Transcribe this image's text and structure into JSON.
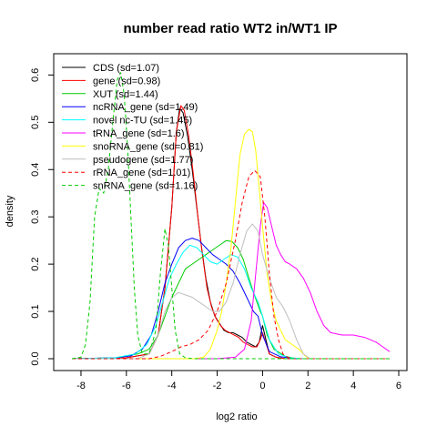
{
  "chart_data": {
    "type": "line",
    "title": "number read ratio WT2 in/WT1 IP",
    "xlabel": "log2 ratio",
    "ylabel": "density",
    "xlim": [
      -8.6,
      5.8
    ],
    "ylim": [
      0,
      0.62
    ],
    "x_ticks": [
      -8,
      -6,
      -4,
      -2,
      0,
      2,
      4,
      6
    ],
    "y_ticks": [
      0.0,
      0.1,
      0.2,
      0.3,
      0.4,
      0.5,
      0.6
    ],
    "legend_position": "top-left",
    "series": [
      {
        "name": "CDS (sd=1.07)",
        "color": "#000000",
        "dash": "solid",
        "points": [
          [
            -8.4,
            0
          ],
          [
            -6,
            0.002
          ],
          [
            -5,
            0.01
          ],
          [
            -4.6,
            0.05
          ],
          [
            -4.3,
            0.15
          ],
          [
            -4,
            0.32
          ],
          [
            -3.8,
            0.48
          ],
          [
            -3.65,
            0.53
          ],
          [
            -3.5,
            0.52
          ],
          [
            -3.3,
            0.47
          ],
          [
            -3.1,
            0.4
          ],
          [
            -2.9,
            0.32
          ],
          [
            -2.7,
            0.24
          ],
          [
            -2.5,
            0.17
          ],
          [
            -2.3,
            0.12
          ],
          [
            -2.1,
            0.09
          ],
          [
            -1.9,
            0.075
          ],
          [
            -1.7,
            0.06
          ],
          [
            -1.5,
            0.055
          ],
          [
            -1.3,
            0.055
          ],
          [
            -1.1,
            0.05
          ],
          [
            -0.9,
            0.045
          ],
          [
            -0.7,
            0.035
          ],
          [
            -0.5,
            0.03
          ],
          [
            -0.3,
            0.025
          ],
          [
            -0.15,
            0.035
          ],
          [
            0,
            0.07
          ],
          [
            0.1,
            0.05
          ],
          [
            0.3,
            0.01
          ],
          [
            0.6,
            0.003
          ],
          [
            1,
            0
          ],
          [
            5.6,
            0
          ]
        ]
      },
      {
        "name": "gene (sd=0.98)",
        "color": "#ff0000",
        "dash": "solid",
        "points": [
          [
            -8.4,
            0
          ],
          [
            -6,
            0.002
          ],
          [
            -5,
            0.01
          ],
          [
            -4.6,
            0.05
          ],
          [
            -4.3,
            0.15
          ],
          [
            -4,
            0.32
          ],
          [
            -3.8,
            0.48
          ],
          [
            -3.6,
            0.535
          ],
          [
            -3.45,
            0.525
          ],
          [
            -3.25,
            0.47
          ],
          [
            -3.05,
            0.39
          ],
          [
            -2.85,
            0.3
          ],
          [
            -2.65,
            0.22
          ],
          [
            -2.45,
            0.15
          ],
          [
            -2.25,
            0.11
          ],
          [
            -2.05,
            0.085
          ],
          [
            -1.85,
            0.07
          ],
          [
            -1.65,
            0.06
          ],
          [
            -1.45,
            0.055
          ],
          [
            -1.25,
            0.05
          ],
          [
            -1.05,
            0.045
          ],
          [
            -0.85,
            0.035
          ],
          [
            -0.65,
            0.03
          ],
          [
            -0.45,
            0.025
          ],
          [
            -0.25,
            0.025
          ],
          [
            -0.1,
            0.04
          ],
          [
            0,
            0.055
          ],
          [
            0.1,
            0.04
          ],
          [
            0.3,
            0.01
          ],
          [
            0.6,
            0.003
          ],
          [
            1,
            0
          ],
          [
            5.6,
            0
          ]
        ]
      },
      {
        "name": "XUT (sd=1.44)",
        "color": "#00cc00",
        "dash": "solid",
        "points": [
          [
            -8.4,
            0
          ],
          [
            -6.5,
            0.002
          ],
          [
            -5.5,
            0.01
          ],
          [
            -5,
            0.02
          ],
          [
            -4.6,
            0.05
          ],
          [
            -4.3,
            0.09
          ],
          [
            -4,
            0.13
          ],
          [
            -3.7,
            0.16
          ],
          [
            -3.4,
            0.19
          ],
          [
            -3.1,
            0.2
          ],
          [
            -2.8,
            0.21
          ],
          [
            -2.5,
            0.22
          ],
          [
            -2.2,
            0.23
          ],
          [
            -1.9,
            0.24
          ],
          [
            -1.6,
            0.25
          ],
          [
            -1.35,
            0.248
          ],
          [
            -1.1,
            0.235
          ],
          [
            -0.85,
            0.21
          ],
          [
            -0.6,
            0.17
          ],
          [
            -0.4,
            0.14
          ],
          [
            -0.25,
            0.12
          ],
          [
            -0.1,
            0.1
          ],
          [
            0,
            0.09
          ],
          [
            0.2,
            0.05
          ],
          [
            0.5,
            0.02
          ],
          [
            1,
            0.005
          ],
          [
            1.5,
            0
          ],
          [
            5.6,
            0
          ]
        ]
      },
      {
        "name": "ncRNA_gene (sd=1.49)",
        "color": "#0000ff",
        "dash": "solid",
        "points": [
          [
            -8.4,
            0
          ],
          [
            -6.5,
            0.002
          ],
          [
            -5.8,
            0.006
          ],
          [
            -5.3,
            0.02
          ],
          [
            -4.9,
            0.05
          ],
          [
            -4.6,
            0.1
          ],
          [
            -4.3,
            0.16
          ],
          [
            -4,
            0.2
          ],
          [
            -3.7,
            0.235
          ],
          [
            -3.4,
            0.25
          ],
          [
            -3.1,
            0.255
          ],
          [
            -2.8,
            0.25
          ],
          [
            -2.5,
            0.235
          ],
          [
            -2.2,
            0.22
          ],
          [
            -1.9,
            0.21
          ],
          [
            -1.6,
            0.2
          ],
          [
            -1.3,
            0.185
          ],
          [
            -1,
            0.16
          ],
          [
            -0.7,
            0.13
          ],
          [
            -0.4,
            0.1
          ],
          [
            -0.2,
            0.09
          ],
          [
            0,
            0.05
          ],
          [
            0.3,
            0.015
          ],
          [
            0.8,
            0.004
          ],
          [
            1.5,
            0
          ],
          [
            5.6,
            0
          ]
        ]
      },
      {
        "name": "novel nc-TU (sd=1.45)",
        "color": "#00ffff",
        "dash": "solid",
        "points": [
          [
            -8.4,
            0
          ],
          [
            -6.5,
            0.002
          ],
          [
            -5.6,
            0.01
          ],
          [
            -5.1,
            0.03
          ],
          [
            -4.7,
            0.07
          ],
          [
            -4.4,
            0.12
          ],
          [
            -4.1,
            0.17
          ],
          [
            -3.8,
            0.2
          ],
          [
            -3.5,
            0.225
          ],
          [
            -3.2,
            0.24
          ],
          [
            -2.9,
            0.235
          ],
          [
            -2.6,
            0.22
          ],
          [
            -2.3,
            0.205
          ],
          [
            -2,
            0.2
          ],
          [
            -1.7,
            0.21
          ],
          [
            -1.4,
            0.22
          ],
          [
            -1.1,
            0.215
          ],
          [
            -0.8,
            0.19
          ],
          [
            -0.5,
            0.15
          ],
          [
            -0.2,
            0.12
          ],
          [
            0,
            0.09
          ],
          [
            0.3,
            0.04
          ],
          [
            0.7,
            0.01
          ],
          [
            1.2,
            0.002
          ],
          [
            1.8,
            0
          ],
          [
            5.6,
            0
          ]
        ]
      },
      {
        "name": "tRNA_gene (sd=1.6)",
        "color": "#ff00ff",
        "dash": "solid",
        "points": [
          [
            -8.4,
            0
          ],
          [
            -2,
            0
          ],
          [
            -1.2,
            0.003
          ],
          [
            -0.8,
            0.02
          ],
          [
            -0.5,
            0.08
          ],
          [
            -0.3,
            0.18
          ],
          [
            -0.1,
            0.28
          ],
          [
            0.05,
            0.33
          ],
          [
            0.2,
            0.32
          ],
          [
            0.4,
            0.28
          ],
          [
            0.6,
            0.24
          ],
          [
            0.8,
            0.22
          ],
          [
            1,
            0.205
          ],
          [
            1.2,
            0.2
          ],
          [
            1.5,
            0.19
          ],
          [
            1.8,
            0.17
          ],
          [
            2.1,
            0.14
          ],
          [
            2.4,
            0.1
          ],
          [
            2.7,
            0.07
          ],
          [
            3,
            0.055
          ],
          [
            3.5,
            0.05
          ],
          [
            4,
            0.05
          ],
          [
            4.5,
            0.045
          ],
          [
            5,
            0.035
          ],
          [
            5.3,
            0.025
          ],
          [
            5.6,
            0.015
          ]
        ]
      },
      {
        "name": "snoRNA_gene (sd=0.81)",
        "color": "#ffff00",
        "dash": "solid",
        "points": [
          [
            -8.4,
            0
          ],
          [
            -3,
            0
          ],
          [
            -2.6,
            0.003
          ],
          [
            -2.3,
            0.02
          ],
          [
            -2,
            0.06
          ],
          [
            -1.8,
            0.1
          ],
          [
            -1.6,
            0.16
          ],
          [
            -1.4,
            0.23
          ],
          [
            -1.2,
            0.33
          ],
          [
            -1,
            0.43
          ],
          [
            -0.8,
            0.475
          ],
          [
            -0.6,
            0.485
          ],
          [
            -0.45,
            0.48
          ],
          [
            -0.3,
            0.44
          ],
          [
            -0.15,
            0.36
          ],
          [
            0,
            0.28
          ],
          [
            0.2,
            0.18
          ],
          [
            0.4,
            0.12
          ],
          [
            0.6,
            0.08
          ],
          [
            0.8,
            0.06
          ],
          [
            1,
            0.04
          ],
          [
            1.3,
            0.03
          ],
          [
            1.6,
            0.02
          ],
          [
            1.9,
            0.005
          ],
          [
            2.1,
            0
          ],
          [
            5.6,
            0
          ]
        ]
      },
      {
        "name": "pseudogene (sd=1.77)",
        "color": "#bebebe",
        "dash": "solid",
        "points": [
          [
            -8.4,
            0
          ],
          [
            -5.5,
            0
          ],
          [
            -5,
            0.01
          ],
          [
            -4.6,
            0.05
          ],
          [
            -4.3,
            0.1
          ],
          [
            -4,
            0.13
          ],
          [
            -3.7,
            0.14
          ],
          [
            -3.4,
            0.135
          ],
          [
            -3.1,
            0.13
          ],
          [
            -2.8,
            0.12
          ],
          [
            -2.5,
            0.11
          ],
          [
            -2.2,
            0.1
          ],
          [
            -1.9,
            0.1
          ],
          [
            -1.6,
            0.12
          ],
          [
            -1.3,
            0.16
          ],
          [
            -1,
            0.22
          ],
          [
            -0.7,
            0.27
          ],
          [
            -0.45,
            0.285
          ],
          [
            -0.2,
            0.27
          ],
          [
            0,
            0.22
          ],
          [
            0.3,
            0.17
          ],
          [
            0.6,
            0.13
          ],
          [
            0.9,
            0.11
          ],
          [
            1.2,
            0.08
          ],
          [
            1.5,
            0.04
          ],
          [
            1.8,
            0.01
          ],
          [
            2.1,
            0
          ],
          [
            5.6,
            0
          ]
        ]
      },
      {
        "name": "rRNA_gene (sd=1.01)",
        "color": "#ff0000",
        "dash": "dashed",
        "points": [
          [
            -8.4,
            0
          ],
          [
            -5,
            0
          ],
          [
            -4.5,
            0.005
          ],
          [
            -4,
            0.015
          ],
          [
            -3.6,
            0.025
          ],
          [
            -3.2,
            0.03
          ],
          [
            -2.8,
            0.04
          ],
          [
            -2.4,
            0.06
          ],
          [
            -2,
            0.1
          ],
          [
            -1.6,
            0.16
          ],
          [
            -1.2,
            0.25
          ],
          [
            -0.9,
            0.33
          ],
          [
            -0.6,
            0.385
          ],
          [
            -0.35,
            0.398
          ],
          [
            -0.1,
            0.385
          ],
          [
            0.1,
            0.3
          ],
          [
            0.3,
            0.18
          ],
          [
            0.5,
            0.09
          ],
          [
            0.7,
            0.04
          ],
          [
            0.9,
            0.01
          ],
          [
            1.1,
            0.003
          ],
          [
            1.3,
            0
          ],
          [
            5.6,
            0
          ]
        ]
      },
      {
        "name": "snRNA_gene (sd=1.16)",
        "color": "#00cc00",
        "dash": "dashed",
        "points": [
          [
            -8.4,
            0
          ],
          [
            -8,
            0.003
          ],
          [
            -7.8,
            0.03
          ],
          [
            -7.6,
            0.12
          ],
          [
            -7.4,
            0.3
          ],
          [
            -7.2,
            0.36
          ],
          [
            -7,
            0.35
          ],
          [
            -6.8,
            0.4
          ],
          [
            -6.6,
            0.5
          ],
          [
            -6.4,
            0.59
          ],
          [
            -6.25,
            0.605
          ],
          [
            -6.1,
            0.56
          ],
          [
            -5.95,
            0.45
          ],
          [
            -5.8,
            0.3
          ],
          [
            -5.65,
            0.15
          ],
          [
            -5.5,
            0.05
          ],
          [
            -5.3,
            0.01
          ],
          [
            -5,
            0.01
          ],
          [
            -4.7,
            0.06
          ],
          [
            -4.5,
            0.18
          ],
          [
            -4.3,
            0.275
          ],
          [
            -4.15,
            0.24
          ],
          [
            -4,
            0.15
          ],
          [
            -3.85,
            0.06
          ],
          [
            -3.65,
            0.01
          ],
          [
            -3.4,
            0.002
          ],
          [
            -3,
            0
          ],
          [
            5.6,
            0
          ]
        ]
      }
    ]
  }
}
